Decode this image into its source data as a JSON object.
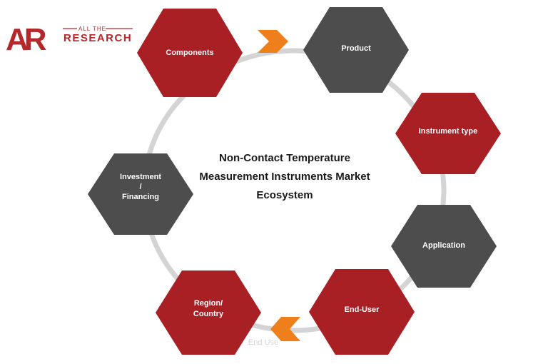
{
  "logo": {
    "letters": "AR",
    "tagline_small": "ALL THE",
    "tagline_big": "RESEARCH"
  },
  "diagram": {
    "title_lines": [
      "Non-Contact Temperature",
      "Measurement Instruments Market",
      "Ecosystem"
    ],
    "nodes": [
      {
        "id": "components",
        "lines": [
          "Components"
        ],
        "color": "#a81f24"
      },
      {
        "id": "product",
        "lines": [
          "Product"
        ],
        "color": "#4d4d4d"
      },
      {
        "id": "instrument-type",
        "lines": [
          "Instrument type"
        ],
        "color": "#a81f24"
      },
      {
        "id": "application",
        "lines": [
          "Application"
        ],
        "color": "#4d4d4d"
      },
      {
        "id": "end-user",
        "lines": [
          "End-User"
        ],
        "color": "#a81f24"
      },
      {
        "id": "region-country",
        "lines": [
          "Region/",
          "Country"
        ],
        "color": "#a81f24"
      },
      {
        "id": "investment-financing",
        "lines": [
          "Investment",
          "/",
          "Financing"
        ],
        "color": "#4d4d4d"
      }
    ],
    "ghost_text": "End Use",
    "colors": {
      "red": "#a81f24",
      "gray": "#4d4d4d",
      "ring": "#d4d4d4",
      "arrow": "#ef7f1a"
    }
  }
}
